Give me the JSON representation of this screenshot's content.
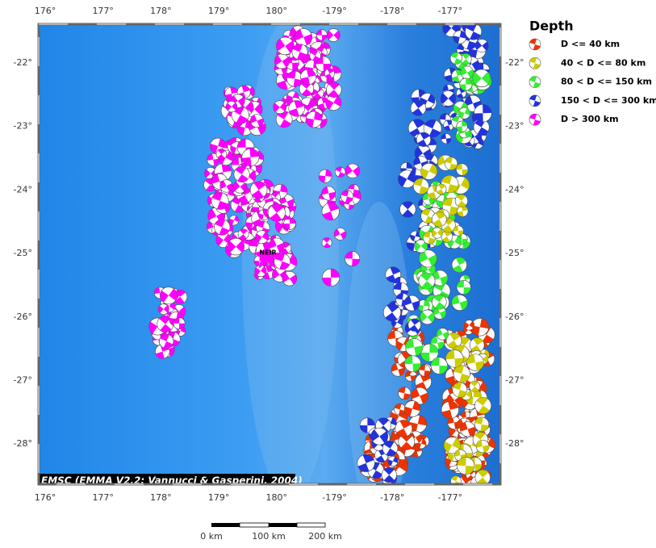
{
  "map": {
    "top_ticks": [
      "176°",
      "177°",
      "178°",
      "179°",
      "180°",
      "-179°",
      "-178°",
      "-177°"
    ],
    "bottom_ticks": [
      "176°",
      "177°",
      "178°",
      "179°",
      "180°",
      "-179°",
      "-178°",
      "-177°"
    ],
    "left_ticks": [
      "-22°",
      "-23°",
      "-24°",
      "-25°",
      "-26°",
      "-27°",
      "-28°"
    ],
    "right_ticks": [
      "-22°",
      "-23°",
      "-24°",
      "-25°",
      "-26°",
      "-27°",
      "-28°"
    ],
    "station": "NEIR",
    "credit": "EMSC (EMMA V2.2; Vannucci & Gasperini, 2004)"
  },
  "legend": {
    "title": "Depth",
    "items": [
      {
        "label": "D <= 40 km",
        "color": "#ee3300"
      },
      {
        "label": "40 < D <= 80 km",
        "color": "#cccc00"
      },
      {
        "label": "80 < D <= 150 km",
        "color": "#33ee33"
      },
      {
        "label": "150 < D <= 300 km",
        "color": "#2233dd"
      },
      {
        "label": "D > 300 km",
        "color": "#ff00ff"
      }
    ]
  },
  "scale_bar": {
    "labels": [
      "0 km",
      "100 km",
      "200 km"
    ]
  }
}
